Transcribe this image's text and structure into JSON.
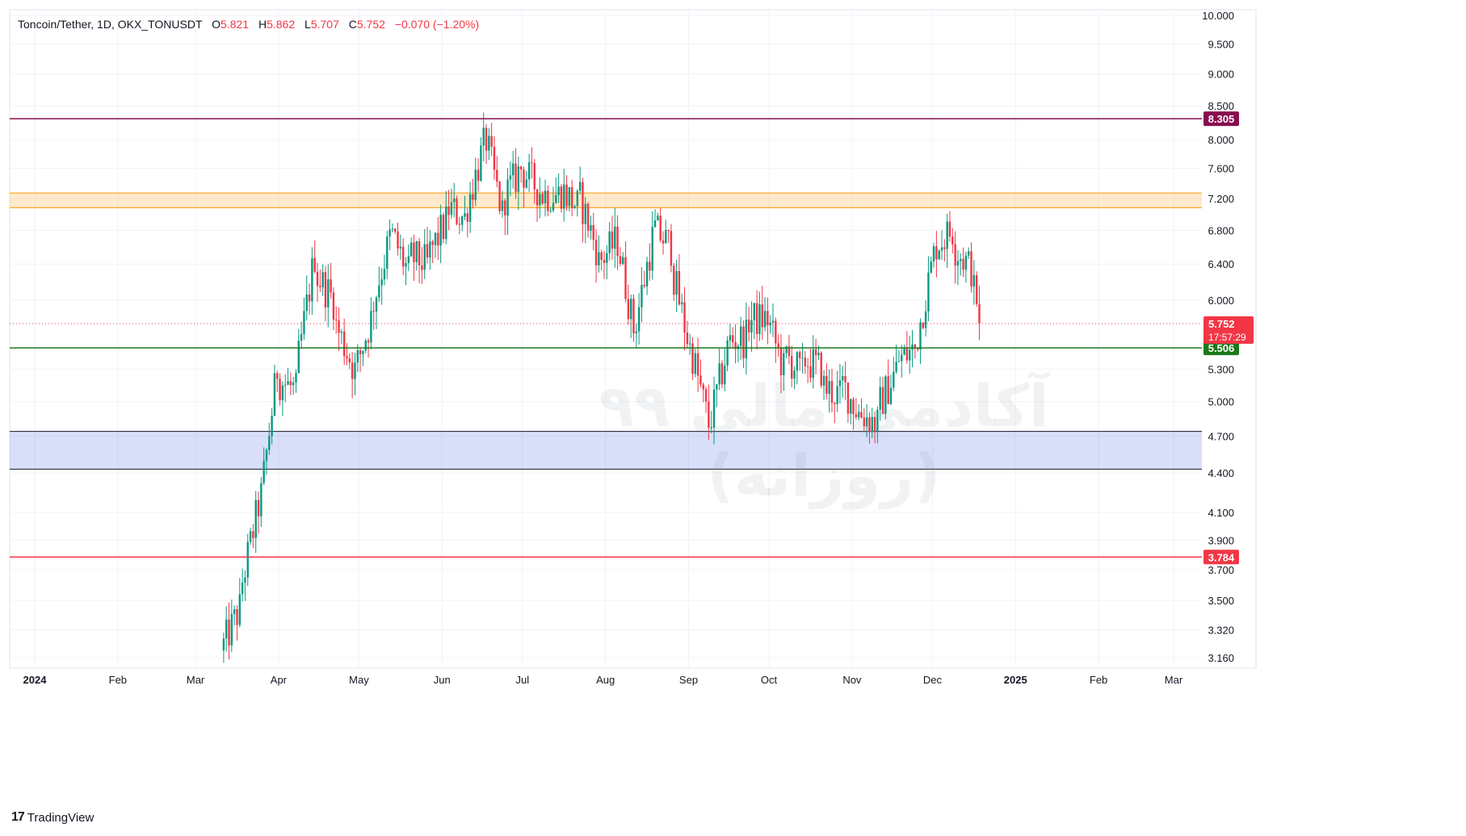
{
  "header": {
    "symbol": "Toncoin/Tether, 1D, OKX_TONUSDT",
    "open_label": "O",
    "open": "5.821",
    "high_label": "H",
    "high": "5.862",
    "low_label": "L",
    "low": "5.707",
    "close_label": "C",
    "close": "5.752",
    "change": "−0.070 (−1.20%)"
  },
  "footer": {
    "brand": "TradingView"
  },
  "watermark": {
    "line1": "آکادمی مالی ۹۹",
    "line2": "(روزانه)"
  },
  "colors": {
    "up": "#089981",
    "down": "#f23645",
    "grid": "#f0f3fa",
    "resistance_line": "#880e4f",
    "zone_orange": "#ff9800",
    "zone_blue": "#1e3fd8",
    "support_green": "#1b7a1b",
    "support_red": "#f23645"
  },
  "chart_data": {
    "type": "candlestick",
    "title": "Toncoin/Tether, 1D, OKX_TONUSDT",
    "y_scale": "log",
    "ylim": [
      3.1,
      10.1
    ],
    "y_ticks": [
      "10.000",
      "9.500",
      "9.000",
      "8.500",
      "8.000",
      "7.600",
      "7.200",
      "6.800",
      "6.400",
      "6.000",
      "5.300",
      "5.000",
      "4.700",
      "4.400",
      "4.100",
      "3.900",
      "3.700",
      "3.500",
      "3.320",
      "3.160"
    ],
    "x_ticks": [
      "2024",
      "Feb",
      "Mar",
      "Apr",
      "May",
      "Jun",
      "Jul",
      "Aug",
      "Sep",
      "Oct",
      "Nov",
      "Dec",
      "2025",
      "Feb",
      "Mar"
    ],
    "horizontal_lines": [
      {
        "value": 8.305,
        "label": "8.305",
        "color": "#880e4f"
      },
      {
        "value": 5.506,
        "label": "5.506",
        "color": "#1b7a1b"
      },
      {
        "value": 3.784,
        "label": "3.784",
        "color": "#f23645"
      }
    ],
    "zones": [
      {
        "from": 7.08,
        "to": 7.27,
        "color": "#ff9800"
      },
      {
        "from": 4.43,
        "to": 4.74,
        "color": "#3f5fe0"
      }
    ],
    "last_price": {
      "value": 5.752,
      "label": "5.752",
      "countdown": "17:57:29"
    },
    "weekly_closes": [
      {
        "date": "2024-03-11",
        "close": 3.45
      },
      {
        "date": "2024-03-18",
        "close": 4.15
      },
      {
        "date": "2024-03-25",
        "close": 5.3
      },
      {
        "date": "2024-04-01",
        "close": 5.1
      },
      {
        "date": "2024-04-08",
        "close": 6.5
      },
      {
        "date": "2024-04-15",
        "close": 6.0
      },
      {
        "date": "2024-04-22",
        "close": 5.35
      },
      {
        "date": "2024-04-29",
        "close": 5.8
      },
      {
        "date": "2024-05-06",
        "close": 6.7
      },
      {
        "date": "2024-05-13",
        "close": 6.3
      },
      {
        "date": "2024-05-20",
        "close": 6.4
      },
      {
        "date": "2024-05-27",
        "close": 6.9
      },
      {
        "date": "2024-06-03",
        "close": 6.95
      },
      {
        "date": "2024-06-10",
        "close": 7.9
      },
      {
        "date": "2024-06-17",
        "close": 7.0
      },
      {
        "date": "2024-06-24",
        "close": 7.6
      },
      {
        "date": "2024-07-01",
        "close": 7.3
      },
      {
        "date": "2024-07-08",
        "close": 7.25
      },
      {
        "date": "2024-07-15",
        "close": 7.1
      },
      {
        "date": "2024-07-22",
        "close": 6.6
      },
      {
        "date": "2024-07-29",
        "close": 6.65
      },
      {
        "date": "2024-08-05",
        "close": 5.7
      },
      {
        "date": "2024-08-12",
        "close": 6.7
      },
      {
        "date": "2024-08-19",
        "close": 6.6
      },
      {
        "date": "2024-08-26",
        "close": 5.5
      },
      {
        "date": "2024-09-02",
        "close": 4.8
      },
      {
        "date": "2024-09-09",
        "close": 5.5
      },
      {
        "date": "2024-09-16",
        "close": 5.6
      },
      {
        "date": "2024-09-23",
        "close": 5.8
      },
      {
        "date": "2024-09-30",
        "close": 5.3
      },
      {
        "date": "2024-10-07",
        "close": 5.25
      },
      {
        "date": "2024-10-14",
        "close": 5.3
      },
      {
        "date": "2024-10-21",
        "close": 5.05
      },
      {
        "date": "2024-10-28",
        "close": 4.9
      },
      {
        "date": "2024-11-04",
        "close": 4.8
      },
      {
        "date": "2024-11-11",
        "close": 5.3
      },
      {
        "date": "2024-11-18",
        "close": 5.5
      },
      {
        "date": "2024-11-25",
        "close": 6.5
      },
      {
        "date": "2024-12-02",
        "close": 6.8
      },
      {
        "date": "2024-12-09",
        "close": 6.35
      },
      {
        "date": "2024-12-16",
        "close": 5.752
      }
    ]
  }
}
